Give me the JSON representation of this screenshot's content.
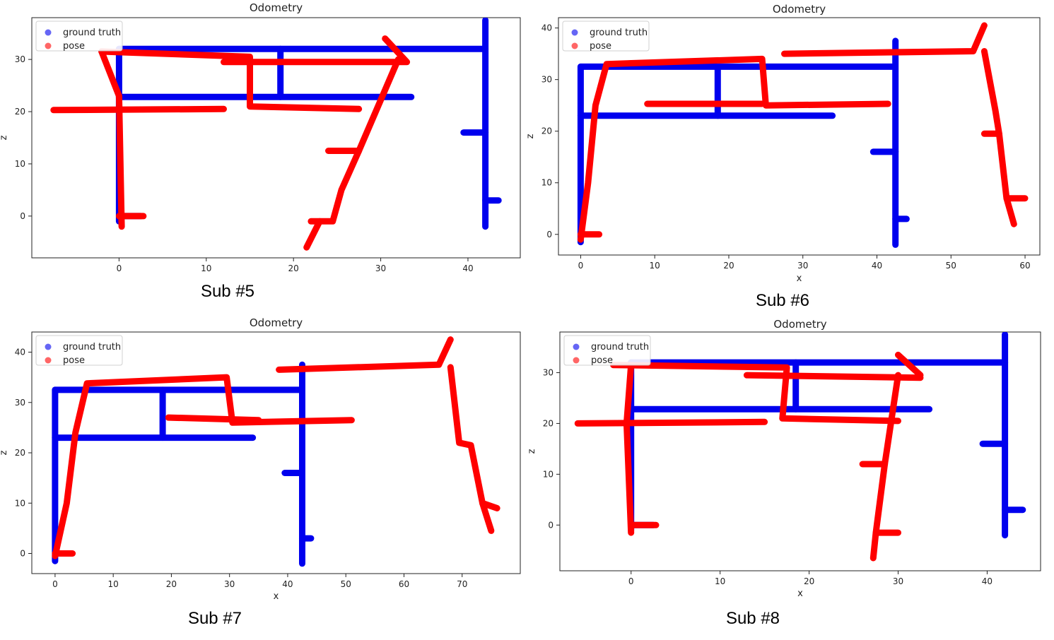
{
  "colors": {
    "ground_truth": "#0000ee",
    "pose": "#ff0000"
  },
  "chart_data": [
    {
      "type": "line",
      "title": "Odometry",
      "xlabel": "",
      "ylabel": "z",
      "caption": "Sub #5",
      "xlim": [
        -10,
        46
      ],
      "ylim": [
        -8,
        38
      ],
      "xticks": [
        0,
        10,
        20,
        30,
        40
      ],
      "yticks": [
        0,
        10,
        20,
        30
      ],
      "legend": {
        "position": "top-left",
        "entries": [
          "ground truth",
          "pose"
        ]
      },
      "series": [
        {
          "name": "ground truth",
          "paths": [
            [
              [
                0,
                32
              ],
              [
                42,
                32
              ]
            ],
            [
              [
                42,
                37.5
              ],
              [
                42,
                -2
              ]
            ],
            [
              [
                0,
                22.8
              ],
              [
                33.5,
                22.8
              ]
            ],
            [
              [
                18.5,
                32
              ],
              [
                18.5,
                22.8
              ]
            ],
            [
              [
                0,
                32
              ],
              [
                0,
                -1
              ]
            ],
            [
              [
                39.5,
                16
              ],
              [
                42,
                16
              ]
            ],
            [
              [
                42,
                3
              ],
              [
                43.5,
                3
              ]
            ],
            [
              [
                0,
                0
              ],
              [
                2.5,
                0
              ]
            ]
          ]
        },
        {
          "name": "pose",
          "paths": [
            [
              [
                -2,
                31.5
              ],
              [
                15,
                30.5
              ],
              [
                15,
                21
              ],
              [
                27.5,
                20.5
              ]
            ],
            [
              [
                12,
                29.5
              ],
              [
                33,
                29.5
              ],
              [
                30.5,
                34
              ]
            ],
            [
              [
                32,
                30
              ],
              [
                27.5,
                12.5
              ],
              [
                24,
                12.5
              ]
            ],
            [
              [
                27.5,
                12.5
              ],
              [
                25.5,
                5
              ],
              [
                24.5,
                -1
              ],
              [
                22,
                -1
              ]
            ],
            [
              [
                23,
                -1
              ],
              [
                21.5,
                -6
              ]
            ],
            [
              [
                -7.5,
                20.3
              ],
              [
                12,
                20.5
              ]
            ],
            [
              [
                -2,
                31.5
              ],
              [
                0,
                23
              ],
              [
                0.3,
                -2
              ]
            ],
            [
              [
                0,
                0
              ],
              [
                2.8,
                0
              ]
            ]
          ]
        }
      ]
    },
    {
      "type": "line",
      "title": "Odometry",
      "xlabel": "x",
      "ylabel": "z",
      "caption": "Sub #6",
      "xlim": [
        -3,
        62
      ],
      "ylim": [
        -4,
        42
      ],
      "xticks": [
        0,
        10,
        20,
        30,
        40,
        50,
        60
      ],
      "yticks": [
        0,
        10,
        20,
        30,
        40
      ],
      "legend": {
        "position": "top-left",
        "entries": [
          "ground truth",
          "pose"
        ]
      },
      "series": [
        {
          "name": "ground truth",
          "paths": [
            [
              [
                0,
                32.5
              ],
              [
                42,
                32.5
              ]
            ],
            [
              [
                42.5,
                37.5
              ],
              [
                42.5,
                -2
              ]
            ],
            [
              [
                0,
                23
              ],
              [
                34,
                23
              ]
            ],
            [
              [
                18.5,
                32.5
              ],
              [
                18.5,
                23
              ]
            ],
            [
              [
                0,
                32.5
              ],
              [
                0,
                -1.5
              ]
            ],
            [
              [
                39.5,
                16
              ],
              [
                42.5,
                16
              ]
            ],
            [
              [
                42.5,
                3
              ],
              [
                44,
                3
              ]
            ]
          ]
        },
        {
          "name": "pose",
          "paths": [
            [
              [
                0,
                -1
              ],
              [
                1,
                10
              ],
              [
                2,
                25
              ],
              [
                3.5,
                33
              ],
              [
                24.5,
                34
              ],
              [
                25,
                25
              ],
              [
                41.5,
                25.3
              ]
            ],
            [
              [
                9,
                25.3
              ],
              [
                24.5,
                25.3
              ]
            ],
            [
              [
                27.5,
                35
              ],
              [
                53,
                35.5
              ],
              [
                54.5,
                40.5
              ]
            ],
            [
              [
                54.5,
                35.5
              ],
              [
                56,
                24
              ],
              [
                56.5,
                19.5
              ],
              [
                54.5,
                19.5
              ]
            ],
            [
              [
                56.5,
                19.5
              ],
              [
                57.5,
                7
              ],
              [
                60,
                7
              ]
            ],
            [
              [
                57.5,
                7
              ],
              [
                58.5,
                2
              ]
            ],
            [
              [
                0,
                0
              ],
              [
                2.5,
                0
              ]
            ]
          ]
        }
      ]
    },
    {
      "type": "line",
      "title": "Odometry",
      "xlabel": "x",
      "ylabel": "z",
      "caption": "Sub #7",
      "xlim": [
        -4,
        80
      ],
      "ylim": [
        -4,
        44
      ],
      "xticks": [
        0,
        10,
        20,
        30,
        40,
        50,
        60,
        70
      ],
      "yticks": [
        0,
        10,
        20,
        30,
        40
      ],
      "legend": {
        "position": "top-left",
        "entries": [
          "ground truth",
          "pose"
        ]
      },
      "series": [
        {
          "name": "ground truth",
          "paths": [
            [
              [
                0,
                32.5
              ],
              [
                42,
                32.5
              ]
            ],
            [
              [
                42.5,
                37.5
              ],
              [
                42.5,
                -2
              ]
            ],
            [
              [
                0,
                23
              ],
              [
                34,
                23
              ]
            ],
            [
              [
                18.5,
                32.5
              ],
              [
                18.5,
                23
              ]
            ],
            [
              [
                0,
                32.5
              ],
              [
                0,
                -1.5
              ]
            ],
            [
              [
                39.5,
                16
              ],
              [
                42.5,
                16
              ]
            ],
            [
              [
                42.5,
                3
              ],
              [
                44,
                3
              ]
            ]
          ]
        },
        {
          "name": "pose",
          "paths": [
            [
              [
                0,
                -0.5
              ],
              [
                2,
                10
              ],
              [
                3.5,
                24
              ],
              [
                5.5,
                33.8
              ],
              [
                29.5,
                35
              ],
              [
                30.5,
                26
              ],
              [
                51,
                26.5
              ]
            ],
            [
              [
                19.5,
                27
              ],
              [
                35,
                26.5
              ]
            ],
            [
              [
                38.5,
                36.5
              ],
              [
                66,
                37.5
              ],
              [
                68,
                42.5
              ]
            ],
            [
              [
                68,
                37
              ],
              [
                69.5,
                22
              ],
              [
                71.5,
                21.5
              ],
              [
                73.5,
                10
              ],
              [
                76,
                9
              ]
            ],
            [
              [
                73.5,
                10
              ],
              [
                75,
                4.5
              ]
            ],
            [
              [
                0,
                0
              ],
              [
                3,
                0
              ]
            ]
          ]
        }
      ]
    },
    {
      "type": "line",
      "title": "Odometry",
      "xlabel": "x",
      "ylabel": "z",
      "caption": "Sub #8",
      "xlim": [
        -8,
        46
      ],
      "ylim": [
        -9,
        38
      ],
      "xticks": [
        0,
        10,
        20,
        30,
        40
      ],
      "yticks": [
        0,
        10,
        20,
        30
      ],
      "legend": {
        "position": "top-left",
        "entries": [
          "ground truth",
          "pose"
        ]
      },
      "series": [
        {
          "name": "ground truth",
          "paths": [
            [
              [
                0,
                32
              ],
              [
                42,
                32
              ]
            ],
            [
              [
                42,
                37.5
              ],
              [
                42,
                -2
              ]
            ],
            [
              [
                0,
                22.8
              ],
              [
                33.5,
                22.8
              ]
            ],
            [
              [
                18.5,
                32
              ],
              [
                18.5,
                22.8
              ]
            ],
            [
              [
                0,
                32
              ],
              [
                0,
                -1
              ]
            ],
            [
              [
                39.5,
                16
              ],
              [
                42,
                16
              ]
            ],
            [
              [
                42,
                3
              ],
              [
                44,
                3
              ]
            ],
            [
              [
                0,
                0
              ],
              [
                2.5,
                0
              ]
            ]
          ]
        },
        {
          "name": "pose",
          "paths": [
            [
              [
                -2,
                31.5
              ],
              [
                17.5,
                31
              ],
              [
                17,
                21
              ],
              [
                30,
                20.5
              ]
            ],
            [
              [
                13,
                29.5
              ],
              [
                32.5,
                29
              ]
            ],
            [
              [
                30,
                33.5
              ],
              [
                32.5,
                29.5
              ]
            ],
            [
              [
                30,
                29.5
              ],
              [
                28.5,
                12
              ]
            ],
            [
              [
                26,
                12
              ],
              [
                28.5,
                12
              ]
            ],
            [
              [
                28.5,
                12
              ],
              [
                27.5,
                -1.5
              ],
              [
                30,
                -1.5
              ]
            ],
            [
              [
                27.5,
                -1.5
              ],
              [
                27.2,
                -6.5
              ]
            ],
            [
              [
                -6,
                20
              ],
              [
                15,
                20.3
              ]
            ],
            [
              [
                0,
                31.5
              ],
              [
                -0.5,
                20
              ],
              [
                0,
                -1.5
              ]
            ],
            [
              [
                0,
                0
              ],
              [
                2.8,
                0
              ]
            ]
          ]
        }
      ]
    }
  ]
}
